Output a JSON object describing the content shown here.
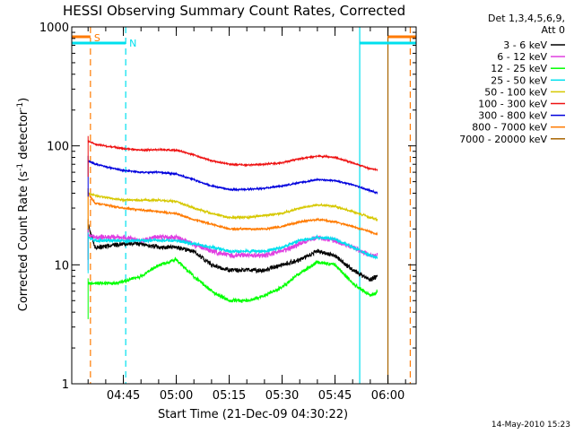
{
  "chart_data": {
    "type": "line",
    "title": "HESSI Observing Summary Count Rates, Corrected",
    "xlabel": "Start Time (21-Dec-09 04:30:22)",
    "ylabel_main": "Corrected Count Rate (s",
    "ylabel_sup1": "-1",
    "ylabel_mid": " detector",
    "ylabel_sup2": "-1",
    "ylabel_end": ")",
    "y_scale": "log",
    "ylim": [
      1,
      1000
    ],
    "y_ticks": [
      {
        "value": 1,
        "label": "1"
      },
      {
        "value": 10,
        "label": "10"
      },
      {
        "value": 100,
        "label": "100"
      },
      {
        "value": 1000,
        "label": "1000"
      }
    ],
    "xlim": [
      "04:30:22",
      "06:08"
    ],
    "x_ticks": [
      {
        "time": "04:45",
        "label": "04:45"
      },
      {
        "time": "05:00",
        "label": "05:00"
      },
      {
        "time": "05:15",
        "label": "05:15"
      },
      {
        "time": "05:30",
        "label": "05:30"
      },
      {
        "time": "05:45",
        "label": "05:45"
      },
      {
        "time": "06:00",
        "label": "06:00"
      }
    ],
    "legend_header": [
      "Det 1,3,4,5,6,9,",
      "Att 0"
    ],
    "legend_position": "right",
    "series": [
      {
        "name": "3 - 6 keV",
        "color": "#000000",
        "noise": 2.2,
        "points": [
          [
            "04:35:00",
            22
          ],
          [
            "04:37:00",
            14
          ],
          [
            "04:45:00",
            15
          ],
          [
            "04:50:00",
            15
          ],
          [
            "04:55:00",
            14
          ],
          [
            "05:00:00",
            14
          ],
          [
            "05:05:00",
            13
          ],
          [
            "05:10:00",
            10
          ],
          [
            "05:15:00",
            9
          ],
          [
            "05:20:00",
            9
          ],
          [
            "05:25:00",
            9
          ],
          [
            "05:30:00",
            10
          ],
          [
            "05:35:00",
            11
          ],
          [
            "05:40:00",
            13
          ],
          [
            "05:45:00",
            12
          ],
          [
            "05:50:00",
            9
          ],
          [
            "05:55:00",
            7.5
          ],
          [
            "05:57:00",
            8
          ]
        ]
      },
      {
        "name": "6 - 12 keV",
        "color": "#e040e0",
        "noise": 2.6,
        "points": [
          [
            "04:35:00",
            18
          ],
          [
            "04:37:00",
            17
          ],
          [
            "04:45:00",
            17
          ],
          [
            "04:50:00",
            16
          ],
          [
            "04:55:00",
            17
          ],
          [
            "05:00:00",
            17
          ],
          [
            "05:05:00",
            15
          ],
          [
            "05:10:00",
            13
          ],
          [
            "05:15:00",
            12
          ],
          [
            "05:20:00",
            12
          ],
          [
            "05:25:00",
            12
          ],
          [
            "05:30:00",
            13
          ],
          [
            "05:35:00",
            15
          ],
          [
            "05:40:00",
            17
          ],
          [
            "05:45:00",
            16
          ],
          [
            "05:50:00",
            14
          ],
          [
            "05:55:00",
            12
          ],
          [
            "05:57:00",
            12
          ]
        ]
      },
      {
        "name": "12 - 25 keV",
        "color": "#00ff00",
        "noise": 1.8,
        "points": [
          [
            "04:35:00",
            7
          ],
          [
            "04:37:00",
            7
          ],
          [
            "04:43:00",
            7
          ],
          [
            "04:50:00",
            8
          ],
          [
            "04:55:00",
            10
          ],
          [
            "05:00:00",
            11
          ],
          [
            "05:05:00",
            8
          ],
          [
            "05:10:00",
            6
          ],
          [
            "05:15:00",
            5
          ],
          [
            "05:20:00",
            5
          ],
          [
            "05:25:00",
            5.5
          ],
          [
            "05:30:00",
            6.5
          ],
          [
            "05:35:00",
            8.5
          ],
          [
            "05:40:00",
            10.5
          ],
          [
            "05:45:00",
            10
          ],
          [
            "05:50:00",
            7
          ],
          [
            "05:55:00",
            5.5
          ],
          [
            "05:57:00",
            6
          ]
        ]
      },
      {
        "name": "25 - 50 keV",
        "color": "#00e0ee",
        "noise": 1.6,
        "points": [
          [
            "04:35:00",
            17
          ],
          [
            "04:37:00",
            16
          ],
          [
            "04:45:00",
            16
          ],
          [
            "04:50:00",
            16
          ],
          [
            "04:55:00",
            16
          ],
          [
            "05:00:00",
            16
          ],
          [
            "05:05:00",
            15
          ],
          [
            "05:10:00",
            14
          ],
          [
            "05:15:00",
            13
          ],
          [
            "05:20:00",
            13
          ],
          [
            "05:25:00",
            13
          ],
          [
            "05:30:00",
            14
          ],
          [
            "05:35:00",
            16
          ],
          [
            "05:40:00",
            17
          ],
          [
            "05:45:00",
            16.5
          ],
          [
            "05:50:00",
            14
          ],
          [
            "05:55:00",
            12
          ],
          [
            "05:57:00",
            11.5
          ]
        ]
      },
      {
        "name": "50 - 100 keV",
        "color": "#d6c800",
        "noise": 1.1,
        "points": [
          [
            "04:35:00",
            40
          ],
          [
            "04:37:00",
            38
          ],
          [
            "04:45:00",
            35
          ],
          [
            "04:50:00",
            35
          ],
          [
            "04:55:00",
            35
          ],
          [
            "05:00:00",
            34
          ],
          [
            "05:05:00",
            30
          ],
          [
            "05:10:00",
            27
          ],
          [
            "05:15:00",
            25
          ],
          [
            "05:20:00",
            25
          ],
          [
            "05:25:00",
            26
          ],
          [
            "05:30:00",
            27
          ],
          [
            "05:35:00",
            30
          ],
          [
            "05:40:00",
            32
          ],
          [
            "05:45:00",
            31
          ],
          [
            "05:50:00",
            28
          ],
          [
            "05:55:00",
            25
          ],
          [
            "05:57:00",
            24
          ]
        ]
      },
      {
        "name": "100 - 300 keV",
        "color": "#ee1111",
        "noise": 0.8,
        "points": [
          [
            "04:35:00",
            110
          ],
          [
            "04:37:00",
            103
          ],
          [
            "04:45:00",
            95
          ],
          [
            "04:50:00",
            92
          ],
          [
            "04:55:00",
            93
          ],
          [
            "05:00:00",
            92
          ],
          [
            "05:05:00",
            84
          ],
          [
            "05:10:00",
            75
          ],
          [
            "05:15:00",
            70
          ],
          [
            "05:20:00",
            69
          ],
          [
            "05:25:00",
            70
          ],
          [
            "05:30:00",
            72
          ],
          [
            "05:35:00",
            78
          ],
          [
            "05:40:00",
            82
          ],
          [
            "05:45:00",
            80
          ],
          [
            "05:50:00",
            72
          ],
          [
            "05:55:00",
            64
          ],
          [
            "05:57:00",
            63
          ]
        ]
      },
      {
        "name": "300 - 800 keV",
        "color": "#0000dd",
        "noise": 0.8,
        "points": [
          [
            "04:35:00",
            75
          ],
          [
            "04:37:00",
            70
          ],
          [
            "04:45:00",
            62
          ],
          [
            "04:50:00",
            60
          ],
          [
            "04:55:00",
            60
          ],
          [
            "05:00:00",
            58
          ],
          [
            "05:05:00",
            52
          ],
          [
            "05:10:00",
            46
          ],
          [
            "05:15:00",
            43
          ],
          [
            "05:20:00",
            43
          ],
          [
            "05:25:00",
            44
          ],
          [
            "05:30:00",
            46
          ],
          [
            "05:35:00",
            49
          ],
          [
            "05:40:00",
            52
          ],
          [
            "05:45:00",
            51
          ],
          [
            "05:50:00",
            47
          ],
          [
            "05:55:00",
            42
          ],
          [
            "05:57:00",
            40
          ]
        ]
      },
      {
        "name": "800 - 7000 keV",
        "color": "#ff7a00",
        "noise": 1.0,
        "points": [
          [
            "04:35:00",
            40
          ],
          [
            "04:37:00",
            33
          ],
          [
            "04:45:00",
            30
          ],
          [
            "04:50:00",
            29
          ],
          [
            "04:55:00",
            28
          ],
          [
            "05:00:00",
            27
          ],
          [
            "05:05:00",
            24
          ],
          [
            "05:10:00",
            22
          ],
          [
            "05:15:00",
            20
          ],
          [
            "05:20:00",
            20
          ],
          [
            "05:25:00",
            20
          ],
          [
            "05:30:00",
            21
          ],
          [
            "05:35:00",
            23
          ],
          [
            "05:40:00",
            24
          ],
          [
            "05:45:00",
            23
          ],
          [
            "05:50:00",
            21
          ],
          [
            "05:55:00",
            19
          ],
          [
            "05:57:00",
            18
          ]
        ]
      },
      {
        "name": "7000 - 20000 keV",
        "color": "#a86400",
        "noise": 0,
        "points": []
      }
    ],
    "annotations": [
      {
        "label": "S",
        "color": "#ff7a00"
      },
      {
        "label": "N",
        "color": "#00e0ee"
      }
    ],
    "footer": "14-May-2010 15:23"
  }
}
